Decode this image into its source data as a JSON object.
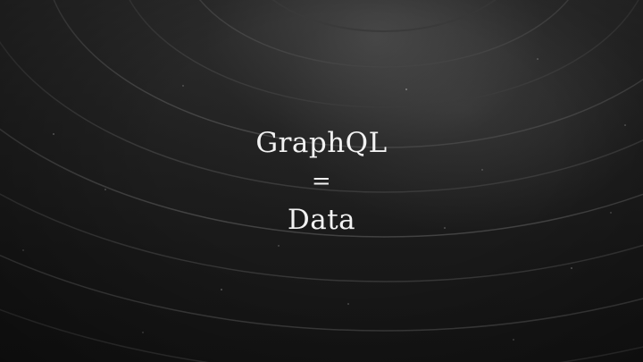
{
  "slide": {
    "line1": "GraphQL",
    "line2": "=",
    "line3": "Data"
  },
  "background": {
    "depicts": "vinyl-record",
    "colors": {
      "record": "#1c1c1c",
      "sheen": "#8a8a8a",
      "text": "#f2f2f2"
    }
  }
}
